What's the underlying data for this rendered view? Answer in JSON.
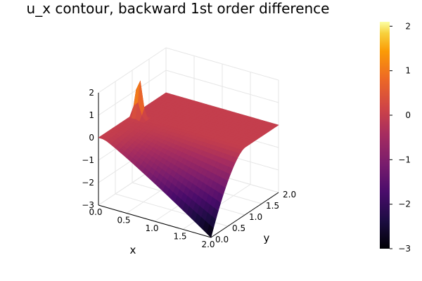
{
  "chart_data": {
    "type": "surface",
    "title": "u_x contour, backward 1st order difference",
    "xlabel": "x",
    "ylabel": "y",
    "zlabel": "",
    "xlim": [
      0.0,
      2.0
    ],
    "ylim": [
      0.0,
      2.0
    ],
    "zlim": [
      -3,
      2
    ],
    "x_ticks": [
      "0.0",
      "0.5",
      "1.0",
      "1.5",
      "2.0"
    ],
    "y_ticks": [
      "0.0",
      "0.5",
      "1.0",
      "1.5",
      "2.0"
    ],
    "z_ticks": [
      "−3",
      "−2",
      "−1",
      "0",
      "1",
      "2"
    ],
    "colorbar": {
      "colormap": "inferno",
      "range": [
        -3,
        2.1
      ],
      "ticks": [
        "−3",
        "−2",
        "−1",
        "0",
        "1",
        "2"
      ]
    },
    "surface": {
      "description_values": {
        "plateau_value": 0.0,
        "peak_value_near_x0_y1": 2.0,
        "min_value_at_x2_y0": -3.0,
        "value_at_x2_y2": 0.0
      }
    },
    "grid": true
  },
  "colors": {
    "background": "#ffffff",
    "grid": "#e6e6e6",
    "axis": "#000000"
  }
}
